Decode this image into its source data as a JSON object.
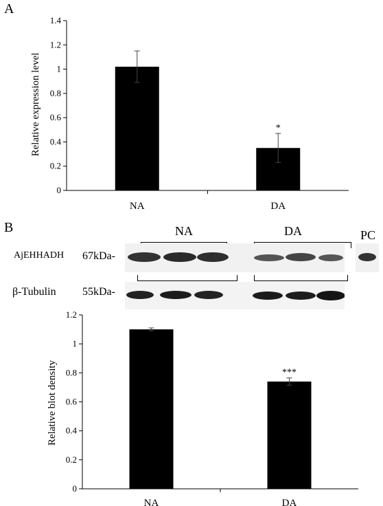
{
  "panel_a": {
    "letter": "A",
    "chart_data": {
      "type": "bar",
      "categories": [
        "NA",
        "DA"
      ],
      "values": [
        1.02,
        0.35
      ],
      "errors": [
        0.13,
        0.12
      ],
      "annotations": [
        "",
        "*"
      ],
      "ylabel": "Relative expression level",
      "xlabel": "",
      "ylim": [
        0,
        1.4
      ],
      "yticks": [
        "0",
        "0.2",
        "0.4",
        "0.6",
        "0.8",
        "1",
        "1.2",
        "1.4"
      ],
      "grid": false
    }
  },
  "panel_b": {
    "letter": "B",
    "blot": {
      "groups": [
        "NA",
        "DA"
      ],
      "pc_label": "PC",
      "rows": [
        {
          "protein": "AjEHHADH",
          "size": "67kDa-"
        },
        {
          "protein": "β-Tubulin",
          "size": "55kDa-"
        }
      ]
    },
    "chart_data": {
      "type": "bar",
      "categories": [
        "NA",
        "DA"
      ],
      "values": [
        1.1,
        0.74
      ],
      "errors": [
        0.01,
        0.025
      ],
      "annotations": [
        "",
        "***"
      ],
      "ylabel": "Relative blot density",
      "xlabel": "",
      "ylim": [
        0,
        1.2
      ],
      "yticks": [
        "0",
        "0.2",
        "0.4",
        "0.6",
        "0.8",
        "1",
        "1.2"
      ],
      "grid": false
    }
  }
}
